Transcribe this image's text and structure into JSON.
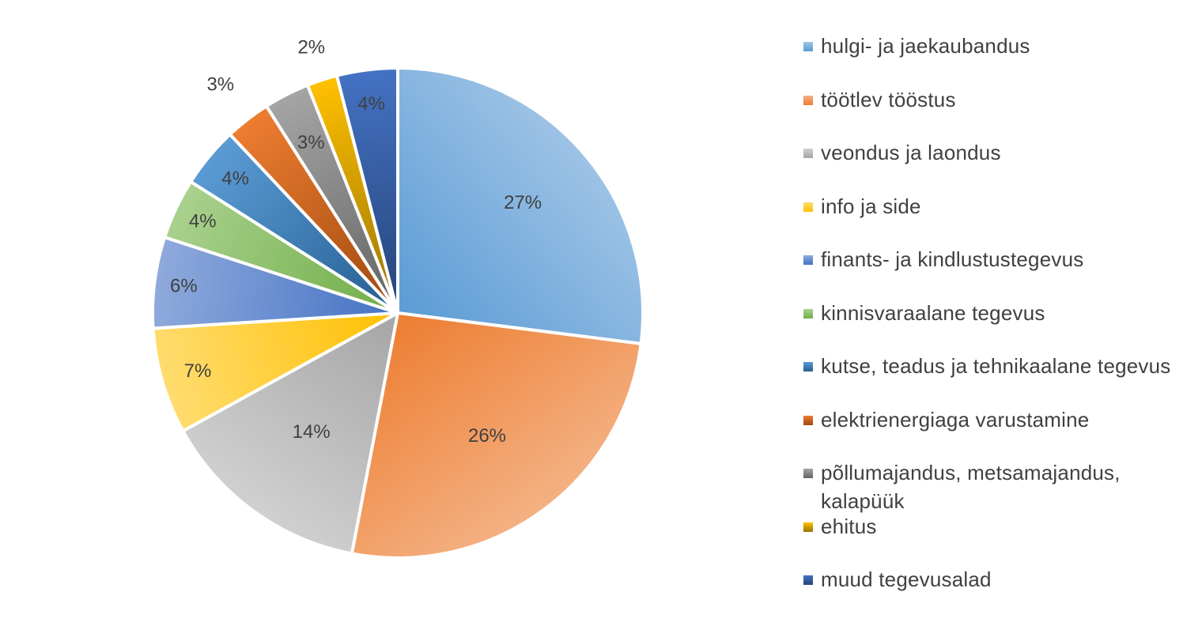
{
  "chart_data": {
    "type": "pie",
    "title": "",
    "legend_position": "right",
    "slices": [
      {
        "name": "hulgi- ja jaekaubandus",
        "value": 27,
        "label": "27%",
        "color": "#5b9bd5",
        "color_light": "#9dc3e6"
      },
      {
        "name": "töötlev tööstus",
        "value": 26,
        "label": "26%",
        "color": "#ed7d31",
        "color_light": "#f4b183"
      },
      {
        "name": "veondus ja laondus",
        "value": 14,
        "label": "14%",
        "color": "#a5a5a5",
        "color_light": "#d0d0d0"
      },
      {
        "name": "info ja side",
        "value": 7,
        "label": "7%",
        "color": "#ffc000",
        "color_light": "#ffdc70"
      },
      {
        "name": "finants- ja kindlustustegevus",
        "value": 6,
        "label": "6%",
        "color": "#4472c4",
        "color_light": "#8faadc"
      },
      {
        "name": "kinnisvaraalane tegevus",
        "value": 4,
        "label": "4%",
        "color": "#70ad47",
        "color_light": "#a9d18e"
      },
      {
        "name": "kutse, teadus ja tehnikaalane tegevus",
        "value": 4,
        "label": "4%",
        "color": "#255e91",
        "color_light": "#5b9bd5"
      },
      {
        "name": "elektrienergiaga varustamine",
        "value": 3,
        "label": "3%",
        "color": "#9e480e",
        "color_light": "#ed7d31"
      },
      {
        "name": "põllumajandus, metsamajandus, kalapüük",
        "value": 3,
        "label": "3%",
        "color": "#636363",
        "color_light": "#a5a5a5"
      },
      {
        "name": "ehitus",
        "value": 2,
        "label": "2%",
        "color": "#997300",
        "color_light": "#ffc000"
      },
      {
        "name": "muud tegevusalad",
        "value": 4,
        "label": "4%",
        "color": "#264478",
        "color_light": "#4472c4"
      }
    ]
  }
}
